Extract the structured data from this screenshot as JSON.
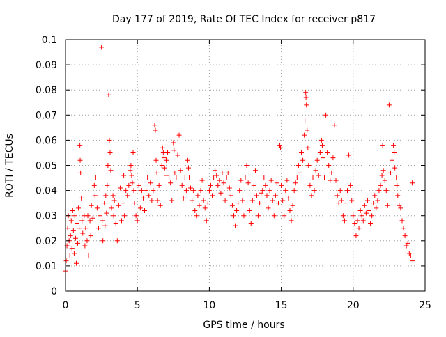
{
  "chart_data": {
    "type": "scatter",
    "title": "Day 177 of 2019, Rate Of TEC Index for receiver p817",
    "xlabel": "GPS time / hours",
    "ylabel": "ROTI / TECUs",
    "xlim": [
      0,
      25
    ],
    "ylim": [
      0,
      0.1
    ],
    "xticks": [
      0,
      5,
      10,
      15,
      20,
      25
    ],
    "xtick_labels": [
      "0",
      "5",
      "10",
      "15",
      "20",
      "25"
    ],
    "yticks": [
      0,
      0.01,
      0.02,
      0.03,
      0.04,
      0.05,
      0.06,
      0.07,
      0.08,
      0.09,
      0.1
    ],
    "ytick_labels": [
      "0",
      "0.01",
      "0.02",
      "0.03",
      "0.04",
      "0.05",
      "0.06",
      "0.07",
      "0.08",
      "0.09",
      "0.1"
    ],
    "grid": true,
    "marker": "plus",
    "color": "#ff0000",
    "series": [
      {
        "points": [
          [
            0.0,
            0.008
          ],
          [
            0.05,
            0.012
          ],
          [
            0.1,
            0.018
          ],
          [
            0.15,
            0.025
          ],
          [
            0.2,
            0.03
          ],
          [
            0.25,
            0.02
          ],
          [
            0.3,
            0.014
          ],
          [
            0.35,
            0.022
          ],
          [
            0.4,
            0.028
          ],
          [
            0.45,
            0.017
          ],
          [
            0.5,
            0.032
          ],
          [
            0.55,
            0.024
          ],
          [
            0.6,
            0.015
          ],
          [
            0.65,
            0.03
          ],
          [
            0.7,
            0.021
          ],
          [
            0.75,
            0.011
          ],
          [
            0.8,
            0.027
          ],
          [
            0.85,
            0.019
          ],
          [
            0.9,
            0.033
          ],
          [
            0.95,
            0.025
          ],
          [
            1.0,
            0.058
          ],
          [
            1.02,
            0.052
          ],
          [
            1.05,
            0.047
          ],
          [
            1.1,
            0.037
          ],
          [
            1.15,
            0.028
          ],
          [
            1.2,
            0.023
          ],
          [
            1.3,
            0.03
          ],
          [
            1.35,
            0.018
          ],
          [
            1.4,
            0.025
          ],
          [
            1.5,
            0.02
          ],
          [
            1.55,
            0.03
          ],
          [
            1.6,
            0.014
          ],
          [
            1.7,
            0.028
          ],
          [
            1.75,
            0.022
          ],
          [
            1.8,
            0.034
          ],
          [
            1.9,
            0.029
          ],
          [
            2.0,
            0.042
          ],
          [
            2.05,
            0.038
          ],
          [
            2.1,
            0.045
          ],
          [
            2.2,
            0.033
          ],
          [
            2.3,
            0.025
          ],
          [
            2.4,
            0.03
          ],
          [
            2.5,
            0.097
          ],
          [
            2.55,
            0.028
          ],
          [
            2.6,
            0.02
          ],
          [
            2.7,
            0.035
          ],
          [
            2.75,
            0.026
          ],
          [
            2.8,
            0.038
          ],
          [
            2.85,
            0.031
          ],
          [
            2.9,
            0.042
          ],
          [
            2.95,
            0.05
          ],
          [
            3.0,
            0.078
          ],
          [
            3.02,
            0.078
          ],
          [
            3.05,
            0.06
          ],
          [
            3.1,
            0.055
          ],
          [
            3.15,
            0.048
          ],
          [
            3.2,
            0.033
          ],
          [
            3.3,
            0.038
          ],
          [
            3.35,
            0.03
          ],
          [
            3.4,
            0.036
          ],
          [
            3.5,
            0.027
          ],
          [
            3.6,
            0.02
          ],
          [
            3.7,
            0.034
          ],
          [
            3.8,
            0.041
          ],
          [
            3.9,
            0.028
          ],
          [
            4.0,
            0.035
          ],
          [
            4.05,
            0.046
          ],
          [
            4.1,
            0.03
          ],
          [
            4.2,
            0.04
          ],
          [
            4.3,
            0.038
          ],
          [
            4.4,
            0.042
          ],
          [
            4.5,
            0.048
          ],
          [
            4.55,
            0.05
          ],
          [
            4.6,
            0.046
          ],
          [
            4.65,
            0.043
          ],
          [
            4.7,
            0.055
          ],
          [
            4.75,
            0.04
          ],
          [
            4.8,
            0.035
          ],
          [
            4.9,
            0.03
          ],
          [
            5.0,
            0.028
          ],
          [
            5.1,
            0.042
          ],
          [
            5.2,
            0.033
          ],
          [
            5.3,
            0.04
          ],
          [
            5.4,
            0.037
          ],
          [
            5.5,
            0.032
          ],
          [
            5.6,
            0.04
          ],
          [
            5.7,
            0.045
          ],
          [
            5.8,
            0.038
          ],
          [
            5.9,
            0.043
          ],
          [
            6.0,
            0.036
          ],
          [
            6.1,
            0.04
          ],
          [
            6.2,
            0.066
          ],
          [
            6.25,
            0.064
          ],
          [
            6.3,
            0.052
          ],
          [
            6.35,
            0.047
          ],
          [
            6.4,
            0.036
          ],
          [
            6.5,
            0.042
          ],
          [
            6.6,
            0.034
          ],
          [
            6.7,
            0.05
          ],
          [
            6.75,
            0.057
          ],
          [
            6.8,
            0.055
          ],
          [
            6.85,
            0.053
          ],
          [
            6.9,
            0.049
          ],
          [
            7.0,
            0.052
          ],
          [
            7.05,
            0.046
          ],
          [
            7.1,
            0.055
          ],
          [
            7.2,
            0.045
          ],
          [
            7.3,
            0.043
          ],
          [
            7.4,
            0.036
          ],
          [
            7.5,
            0.059
          ],
          [
            7.55,
            0.056
          ],
          [
            7.6,
            0.047
          ],
          [
            7.7,
            0.045
          ],
          [
            7.8,
            0.054
          ],
          [
            7.9,
            0.062
          ],
          [
            8.0,
            0.048
          ],
          [
            8.1,
            0.042
          ],
          [
            8.2,
            0.037
          ],
          [
            8.3,
            0.045
          ],
          [
            8.4,
            0.04
          ],
          [
            8.5,
            0.052
          ],
          [
            8.55,
            0.049
          ],
          [
            8.6,
            0.045
          ],
          [
            8.7,
            0.041
          ],
          [
            8.8,
            0.036
          ],
          [
            8.9,
            0.04
          ],
          [
            9.0,
            0.032
          ],
          [
            9.1,
            0.03
          ],
          [
            9.2,
            0.038
          ],
          [
            9.3,
            0.034
          ],
          [
            9.4,
            0.04
          ],
          [
            9.5,
            0.044
          ],
          [
            9.6,
            0.036
          ],
          [
            9.7,
            0.033
          ],
          [
            9.8,
            0.028
          ],
          [
            9.9,
            0.035
          ],
          [
            10.0,
            0.04
          ],
          [
            10.1,
            0.042
          ],
          [
            10.2,
            0.038
          ],
          [
            10.3,
            0.045
          ],
          [
            10.4,
            0.048
          ],
          [
            10.5,
            0.046
          ],
          [
            10.6,
            0.042
          ],
          [
            10.7,
            0.044
          ],
          [
            10.8,
            0.039
          ],
          [
            10.9,
            0.047
          ],
          [
            11.0,
            0.043
          ],
          [
            11.1,
            0.036
          ],
          [
            11.2,
            0.045
          ],
          [
            11.3,
            0.047
          ],
          [
            11.4,
            0.041
          ],
          [
            11.5,
            0.038
          ],
          [
            11.6,
            0.034
          ],
          [
            11.7,
            0.03
          ],
          [
            11.8,
            0.026
          ],
          [
            11.9,
            0.032
          ],
          [
            12.0,
            0.035
          ],
          [
            12.1,
            0.04
          ],
          [
            12.2,
            0.044
          ],
          [
            12.3,
            0.036
          ],
          [
            12.4,
            0.03
          ],
          [
            12.5,
            0.045
          ],
          [
            12.6,
            0.05
          ],
          [
            12.7,
            0.043
          ],
          [
            12.8,
            0.032
          ],
          [
            12.9,
            0.027
          ],
          [
            13.0,
            0.036
          ],
          [
            13.1,
            0.042
          ],
          [
            13.2,
            0.048
          ],
          [
            13.3,
            0.038
          ],
          [
            13.4,
            0.03
          ],
          [
            13.5,
            0.035
          ],
          [
            13.6,
            0.039
          ],
          [
            13.7,
            0.04
          ],
          [
            13.8,
            0.045
          ],
          [
            13.9,
            0.042
          ],
          [
            14.0,
            0.038
          ],
          [
            14.1,
            0.033
          ],
          [
            14.2,
            0.04
          ],
          [
            14.3,
            0.044
          ],
          [
            14.4,
            0.036
          ],
          [
            14.5,
            0.03
          ],
          [
            14.6,
            0.038
          ],
          [
            14.7,
            0.043
          ],
          [
            14.8,
            0.035
          ],
          [
            14.9,
            0.058
          ],
          [
            14.95,
            0.057
          ],
          [
            15.0,
            0.042
          ],
          [
            15.1,
            0.036
          ],
          [
            15.2,
            0.03
          ],
          [
            15.3,
            0.04
          ],
          [
            15.4,
            0.044
          ],
          [
            15.5,
            0.037
          ],
          [
            15.6,
            0.032
          ],
          [
            15.7,
            0.028
          ],
          [
            15.8,
            0.034
          ],
          [
            15.9,
            0.04
          ],
          [
            16.0,
            0.043
          ],
          [
            16.1,
            0.045
          ],
          [
            16.2,
            0.05
          ],
          [
            16.3,
            0.047
          ],
          [
            16.4,
            0.055
          ],
          [
            16.5,
            0.052
          ],
          [
            16.6,
            0.062
          ],
          [
            16.65,
            0.068
          ],
          [
            16.7,
            0.079
          ],
          [
            16.72,
            0.077
          ],
          [
            16.75,
            0.074
          ],
          [
            16.8,
            0.064
          ],
          [
            16.85,
            0.057
          ],
          [
            16.9,
            0.05
          ],
          [
            17.0,
            0.042
          ],
          [
            17.1,
            0.038
          ],
          [
            17.2,
            0.045
          ],
          [
            17.3,
            0.04
          ],
          [
            17.4,
            0.048
          ],
          [
            17.5,
            0.052
          ],
          [
            17.6,
            0.046
          ],
          [
            17.7,
            0.055
          ],
          [
            17.8,
            0.06
          ],
          [
            17.85,
            0.058
          ],
          [
            17.9,
            0.053
          ],
          [
            18.0,
            0.045
          ],
          [
            18.1,
            0.07
          ],
          [
            18.2,
            0.055
          ],
          [
            18.3,
            0.05
          ],
          [
            18.4,
            0.044
          ],
          [
            18.5,
            0.047
          ],
          [
            18.6,
            0.053
          ],
          [
            18.7,
            0.066
          ],
          [
            18.8,
            0.044
          ],
          [
            18.9,
            0.038
          ],
          [
            19.0,
            0.035
          ],
          [
            19.1,
            0.04
          ],
          [
            19.2,
            0.036
          ],
          [
            19.3,
            0.03
          ],
          [
            19.4,
            0.028
          ],
          [
            19.5,
            0.035
          ],
          [
            19.6,
            0.04
          ],
          [
            19.7,
            0.054
          ],
          [
            19.8,
            0.042
          ],
          [
            19.9,
            0.036
          ],
          [
            20.0,
            0.03
          ],
          [
            20.1,
            0.027
          ],
          [
            20.2,
            0.022
          ],
          [
            20.3,
            0.028
          ],
          [
            20.4,
            0.025
          ],
          [
            20.5,
            0.032
          ],
          [
            20.6,
            0.03
          ],
          [
            20.7,
            0.028
          ],
          [
            20.8,
            0.034
          ],
          [
            20.9,
            0.031
          ],
          [
            21.0,
            0.036
          ],
          [
            21.1,
            0.032
          ],
          [
            21.2,
            0.027
          ],
          [
            21.3,
            0.03
          ],
          [
            21.4,
            0.035
          ],
          [
            21.5,
            0.038
          ],
          [
            21.6,
            0.033
          ],
          [
            21.7,
            0.036
          ],
          [
            21.8,
            0.04
          ],
          [
            21.9,
            0.042
          ],
          [
            22.0,
            0.046
          ],
          [
            22.05,
            0.058
          ],
          [
            22.1,
            0.048
          ],
          [
            22.2,
            0.044
          ],
          [
            22.3,
            0.04
          ],
          [
            22.4,
            0.034
          ],
          [
            22.5,
            0.074
          ],
          [
            22.6,
            0.047
          ],
          [
            22.7,
            0.052
          ],
          [
            22.8,
            0.058
          ],
          [
            22.85,
            0.055
          ],
          [
            22.9,
            0.049
          ],
          [
            23.0,
            0.045
          ],
          [
            23.05,
            0.042
          ],
          [
            23.1,
            0.038
          ],
          [
            23.2,
            0.034
          ],
          [
            23.3,
            0.033
          ],
          [
            23.4,
            0.028
          ],
          [
            23.5,
            0.025
          ],
          [
            23.6,
            0.022
          ],
          [
            23.7,
            0.018
          ],
          [
            23.8,
            0.019
          ],
          [
            23.9,
            0.015
          ],
          [
            24.0,
            0.014
          ],
          [
            24.1,
            0.043
          ],
          [
            24.15,
            0.012
          ]
        ]
      }
    ]
  }
}
